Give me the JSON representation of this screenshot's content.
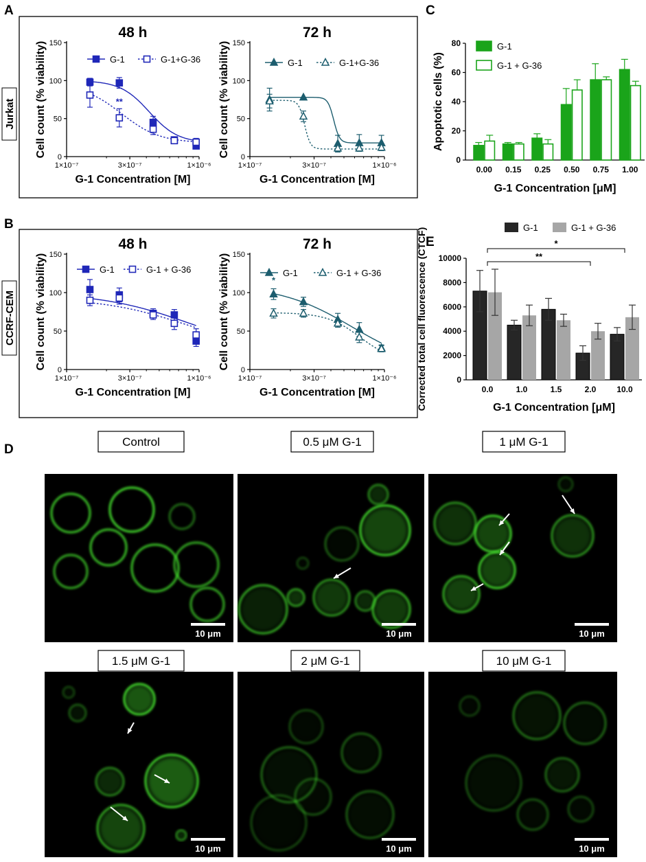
{
  "panel_labels": {
    "a": "A",
    "b": "B",
    "c": "C",
    "d": "D",
    "e": "E"
  },
  "cell_lines": {
    "a": "Jurkat",
    "b": "CCRF-CEM"
  },
  "colors": {
    "blue": "#1f27b8",
    "teal": "#1c5d6e",
    "green": "#1aa41a",
    "dark": "#262626",
    "gray": "#a6a6a6",
    "micro_green": "#3fd22a"
  },
  "chart_data": [
    {
      "id": "A-48h",
      "type": "line",
      "title": "48 h",
      "xlabel": "G-1 Concentration [M]",
      "ylabel": "Cell count (% viability)",
      "xscale": "log",
      "xlim": [
        1e-07,
        1e-06
      ],
      "ylim": [
        0,
        150
      ],
      "xticks": [
        "1×10⁻⁷",
        "3×10⁻⁷",
        "1×10⁻⁶"
      ],
      "yticks": [
        "0",
        "50",
        "100",
        "150"
      ],
      "series": [
        {
          "name": "G-1",
          "marker": "square-filled",
          "line": "solid",
          "x": [
            1.5e-07,
            2.5e-07,
            4.5e-07,
            6.5e-07,
            9.5e-07
          ],
          "y": [
            98,
            97,
            45,
            22,
            14
          ],
          "err": [
            5,
            7,
            8,
            3,
            4
          ],
          "fit": [
            100,
            18,
            4.2e-07,
            4
          ]
        },
        {
          "name": "G-1+G-36",
          "marker": "square-open",
          "line": "dotted",
          "x": [
            1.5e-07,
            2.5e-07,
            4.5e-07,
            6.5e-07,
            9.5e-07
          ],
          "y": [
            81,
            51,
            36,
            21,
            19
          ],
          "err": [
            16,
            12,
            7,
            3,
            5
          ],
          "fit": [
            95,
            18,
            2.6e-07,
            3
          ]
        }
      ],
      "annotations": [
        {
          "text": "**",
          "x": 2.5e-07,
          "y": 68
        }
      ]
    },
    {
      "id": "A-72h",
      "type": "line",
      "title": "72 h",
      "xlabel": "G-1 Concentration [M]",
      "ylabel": "Cell count (% viability)",
      "xscale": "log",
      "xlim": [
        1e-07,
        1e-06
      ],
      "ylim": [
        0,
        150
      ],
      "xticks": [
        "1×10⁻⁷",
        "3×10⁻⁷",
        "1×10⁻⁶"
      ],
      "yticks": [
        "0",
        "50",
        "100",
        "150"
      ],
      "series": [
        {
          "name": "G-1",
          "marker": "triangle-filled",
          "line": "solid",
          "x": [
            1.4e-07,
            2.5e-07,
            4.5e-07,
            6.5e-07,
            9.5e-07
          ],
          "y": [
            75,
            78,
            17,
            18,
            18
          ],
          "err": [
            15,
            0,
            11,
            11,
            10
          ],
          "fit": [
            78,
            18,
            4.2e-07,
            20
          ]
        },
        {
          "name": "G-1+G-36",
          "marker": "triangle-open",
          "line": "dotted",
          "x": [
            1.4e-07,
            2.5e-07,
            4.5e-07,
            6.5e-07,
            9.5e-07
          ],
          "y": [
            73,
            53,
            11,
            11,
            12
          ],
          "err": [
            9,
            7,
            4,
            4,
            4
          ],
          "fit": [
            74,
            10,
            2.55e-07,
            20
          ]
        }
      ]
    },
    {
      "id": "B-48h",
      "type": "line",
      "title": "48 h",
      "xlabel": "G-1 Concentration [M]",
      "ylabel": "Cell count (% viability)",
      "xscale": "log",
      "xlim": [
        1e-07,
        1e-06
      ],
      "ylim": [
        0,
        150
      ],
      "xticks": [
        "1×10⁻⁷",
        "3×10⁻⁷",
        "1×10⁻⁶"
      ],
      "yticks": [
        "0",
        "50",
        "100",
        "150"
      ],
      "series": [
        {
          "name": "G-1",
          "marker": "square-filled",
          "line": "solid",
          "x": [
            1.5e-07,
            2.5e-07,
            4.5e-07,
            6.5e-07,
            9.5e-07
          ],
          "y": [
            104,
            97,
            73,
            71,
            37
          ],
          "err": [
            13,
            9,
            6,
            7,
            7
          ],
          "fit": [
            100,
            20,
            8.5e-07,
            1.3
          ]
        },
        {
          "name": "G-1 + G-36",
          "marker": "square-open",
          "line": "dotted",
          "x": [
            1.5e-07,
            2.5e-07,
            4.5e-07,
            6.5e-07,
            9.5e-07
          ],
          "y": [
            90,
            93,
            71,
            60,
            45
          ],
          "err": [
            7,
            8,
            6,
            8,
            8
          ],
          "fit": [
            93,
            25,
            7.8e-07,
            1.4
          ]
        }
      ]
    },
    {
      "id": "B-72h",
      "type": "line",
      "title": "72 h",
      "xlabel": "G-1 Concentration [M]",
      "ylabel": "Cell count (% viability)",
      "xscale": "log",
      "xlim": [
        1e-07,
        1e-06
      ],
      "ylim": [
        0,
        150
      ],
      "xticks": [
        "1×10⁻⁷",
        "3×10⁻⁷",
        "1×10⁻⁶"
      ],
      "yticks": [
        "0",
        "50",
        "100",
        "150"
      ],
      "series": [
        {
          "name": "G-1",
          "marker": "triangle-filled",
          "line": "solid",
          "x": [
            1.5e-07,
            2.5e-07,
            4.5e-07,
            6.5e-07,
            9.5e-07
          ],
          "y": [
            98,
            88,
            65,
            52,
            28
          ],
          "err": [
            7,
            6,
            8,
            9,
            4
          ],
          "fit": [
            110,
            0,
            5.8e-07,
            1.6
          ]
        },
        {
          "name": "G-1 + G-36",
          "marker": "triangle-open",
          "line": "dotted",
          "x": [
            1.5e-07,
            2.5e-07,
            4.5e-07,
            6.5e-07,
            9.5e-07
          ],
          "y": [
            73,
            73,
            60,
            42,
            27
          ],
          "err": [
            6,
            5,
            5,
            7,
            4
          ],
          "fit": [
            74,
            10,
            6.6e-07,
            3.5
          ]
        }
      ],
      "annotations": [
        {
          "text": "*",
          "x": 1.5e-07,
          "y": 112
        }
      ]
    },
    {
      "id": "C",
      "type": "bar",
      "xlabel": "G-1 Concentration [μM]",
      "ylabel": "Apoptotic cells (%)",
      "ylim": [
        0,
        80
      ],
      "yticks": [
        "0",
        "20",
        "40",
        "60",
        "80"
      ],
      "categories": [
        "0.00",
        "0.15",
        "0.25",
        "0.50",
        "0.75",
        "1.00"
      ],
      "series": [
        {
          "name": "G-1",
          "style": "filled",
          "values": [
            10,
            11,
            15,
            38,
            55,
            62
          ],
          "err": [
            2,
            1,
            3,
            11,
            11,
            7
          ]
        },
        {
          "name": "G-1 + G-36",
          "style": "open",
          "values": [
            13,
            11,
            11,
            48,
            55,
            51
          ],
          "err": [
            4,
            1,
            3,
            7,
            2,
            3
          ]
        }
      ]
    },
    {
      "id": "E",
      "type": "bar",
      "xlabel": "G-1 Concentration [μM]",
      "ylabel": "Corrected total cell fluorescence (CTCF)",
      "ylim": [
        0,
        10000
      ],
      "yticks": [
        "0",
        "2000",
        "4000",
        "6000",
        "8000",
        "10000"
      ],
      "categories": [
        "0.0",
        "1.0",
        "1.5",
        "2.0",
        "10.0"
      ],
      "series": [
        {
          "name": "G-1",
          "values": [
            7300,
            4500,
            5800,
            2200,
            3750
          ],
          "err": [
            1700,
            400,
            900,
            600,
            550
          ]
        },
        {
          "name": "G-1 + G-36",
          "values": [
            7200,
            5300,
            4900,
            4000,
            5150
          ],
          "err": [
            1900,
            850,
            500,
            650,
            1000
          ]
        }
      ],
      "significance": [
        {
          "text": "**",
          "from": "0.0",
          "to": "2.0"
        },
        {
          "text": "*",
          "from": "0.0",
          "to": "10.0"
        }
      ]
    }
  ],
  "micrographs": [
    {
      "label": "Control",
      "scale": "10 μm"
    },
    {
      "label": "0.5 μM G-1",
      "scale": "10 μm"
    },
    {
      "label": "1 μM G-1",
      "scale": "10 μm"
    },
    {
      "label": "1.5 μM G-1",
      "scale": "10 μm"
    },
    {
      "label": "2 μM G-1",
      "scale": "10 μm"
    },
    {
      "label": "10 μM G-1",
      "scale": "10 μm"
    }
  ]
}
